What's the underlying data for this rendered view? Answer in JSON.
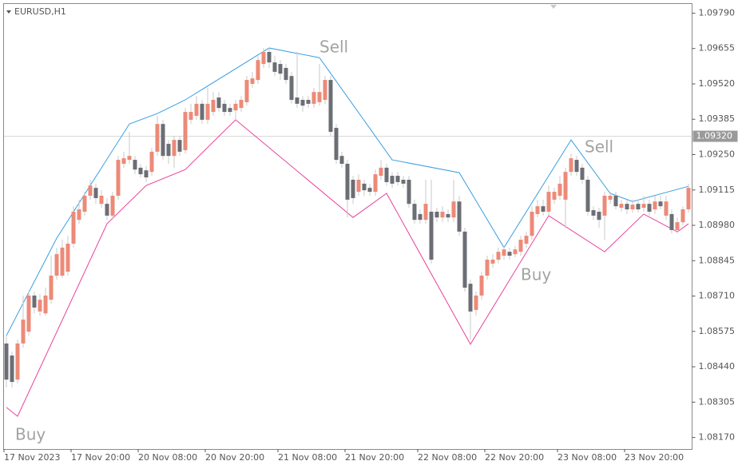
{
  "chart_data": {
    "type": "candlestick",
    "symbol": "EURUSD,H1",
    "up_color": "#ec8a78",
    "down_color": "#6b6e74",
    "upper_color": "#3a9ee0",
    "lower_color": "#e8429a",
    "ylim": [
      1.08126,
      1.09825
    ],
    "yticks": [
      {
        "value": 1.0979,
        "label": "1.09790"
      },
      1.09655,
      {
        "value": 1.0952,
        "label": "1.09520"
      },
      1.09385,
      {
        "value": 1.0925,
        "label": "1.09250"
      },
      1.09115,
      {
        "value": 1.0898,
        "label": "1.08980"
      },
      1.08845,
      {
        "value": 1.0871,
        "label": "1.08710"
      },
      1.08575,
      {
        "value": 1.0844,
        "label": "1.08440"
      },
      1.08305,
      {
        "value": 1.0817,
        "label": "1.08170"
      }
    ],
    "current_price": {
      "value": 1.0932,
      "label": "1.09320"
    },
    "categories": [
      "17 Nov 2023",
      null,
      null,
      null,
      null,
      null,
      null,
      null,
      null,
      null,
      null,
      null,
      "17 Nov 20:00",
      null,
      null,
      null,
      null,
      null,
      null,
      null,
      null,
      null,
      null,
      null,
      "20 Nov 08:00",
      null,
      null,
      null,
      null,
      null,
      null,
      null,
      null,
      null,
      null,
      null,
      "20 Nov 20:00",
      null,
      null,
      null,
      null,
      null,
      null,
      null,
      null,
      null,
      null,
      null,
      null,
      "21 Nov 08:00",
      null,
      null,
      null,
      null,
      null,
      null,
      null,
      null,
      null,
      null,
      null,
      "21 Nov 20:00",
      null,
      null,
      null,
      null,
      null,
      null,
      null,
      null,
      null,
      null,
      null,
      null,
      "22 Nov 08:00",
      null,
      null,
      null,
      null,
      null,
      null,
      null,
      null,
      null,
      null,
      null,
      "22 Nov 20:00",
      null,
      null,
      null,
      null,
      null,
      null,
      null,
      null,
      null,
      null,
      null,
      null,
      "23 Nov 08:00",
      null,
      null,
      null,
      null,
      null,
      null,
      null,
      null,
      null,
      null,
      null,
      "23 Nov 20:00",
      null,
      null,
      null,
      null,
      null,
      null,
      null,
      null,
      null,
      null,
      null
    ],
    "ohlc": [
      [
        1.08529,
        1.08559,
        1.08361,
        1.08391
      ],
      [
        1.08483,
        1.08498,
        1.08361,
        1.08382
      ],
      [
        1.08391,
        1.08544,
        1.08376,
        1.08529
      ],
      [
        1.08529,
        1.08712,
        1.08513,
        1.0862
      ],
      [
        1.08574,
        1.08727,
        1.08559,
        1.08712
      ],
      [
        1.08712,
        1.08727,
        1.08644,
        1.08666
      ],
      [
        1.08651,
        1.08718,
        1.08635,
        1.08696
      ],
      [
        1.08644,
        1.08742,
        1.08635,
        1.08712
      ],
      [
        1.08696,
        1.08864,
        1.08681,
        1.08788
      ],
      [
        1.08788,
        1.08895,
        1.08773,
        1.0887
      ],
      [
        1.08788,
        1.08925,
        1.08779,
        1.08895
      ],
      [
        1.08803,
        1.0894,
        1.08788,
        1.0891
      ],
      [
        1.0891,
        1.09053,
        1.08895,
        1.09032
      ],
      [
        1.09001,
        1.09078,
        1.08986,
        1.09041
      ],
      [
        1.09032,
        1.09108,
        1.09017,
        1.09093
      ],
      [
        1.09093,
        1.09154,
        1.09078,
        1.09132
      ],
      [
        1.09123,
        1.09139,
        1.09062,
        1.09084
      ],
      [
        1.09062,
        1.09114,
        1.09047,
        1.09093
      ],
      [
        1.09062,
        1.09084,
        1.09001,
        1.09017
      ],
      [
        1.09017,
        1.09108,
        1.09001,
        1.09093
      ],
      [
        1.09093,
        1.09245,
        1.09078,
        1.0923
      ],
      [
        1.09215,
        1.09261,
        1.092,
        1.09236
      ],
      [
        1.0923,
        1.09337,
        1.09215,
        1.09245
      ],
      [
        1.0923,
        1.09245,
        1.09175,
        1.09193
      ],
      [
        1.092,
        1.09215,
        1.09163,
        1.09175
      ],
      [
        1.0919,
        1.09206,
        1.09145,
        1.09163
      ],
      [
        1.09184,
        1.09276,
        1.09169,
        1.09261
      ],
      [
        1.09261,
        1.09398,
        1.09245,
        1.09367
      ],
      [
        1.09367,
        1.09383,
        1.0923,
        1.09245
      ],
      [
        1.09291,
        1.09306,
        1.09215,
        1.09245
      ],
      [
        1.09245,
        1.09322,
        1.092,
        1.09306
      ],
      [
        1.09306,
        1.09322,
        1.09245,
        1.09261
      ],
      [
        1.09267,
        1.09428,
        1.09254,
        1.09413
      ],
      [
        1.09383,
        1.09444,
        1.09367,
        1.09413
      ],
      [
        1.09398,
        1.09474,
        1.09383,
        1.09444
      ],
      [
        1.09444,
        1.09459,
        1.09367,
        1.09383
      ],
      [
        1.09383,
        1.09505,
        1.09367,
        1.09444
      ],
      [
        1.09413,
        1.09489,
        1.09398,
        1.09459
      ],
      [
        1.09468,
        1.09489,
        1.09413,
        1.09428
      ],
      [
        1.09444,
        1.09459,
        1.09398,
        1.09413
      ],
      [
        1.09428,
        1.09444,
        1.09398,
        1.09413
      ],
      [
        1.09419,
        1.09459,
        1.09383,
        1.09444
      ],
      [
        1.09428,
        1.09474,
        1.09413,
        1.09459
      ],
      [
        1.0945,
        1.0955,
        1.09437,
        1.09535
      ],
      [
        1.0952,
        1.09566,
        1.09505,
        1.09541
      ],
      [
        1.09535,
        1.09627,
        1.0952,
        1.09611
      ],
      [
        1.09596,
        1.09657,
        1.09581,
        1.09642
      ],
      [
        1.09642,
        1.09657,
        1.09581,
        1.09602
      ],
      [
        1.09602,
        1.09627,
        1.0955,
        1.09566
      ],
      [
        1.09596,
        1.09611,
        1.09535,
        1.09559
      ],
      [
        1.09581,
        1.09596,
        1.0952,
        1.09535
      ],
      [
        1.0955,
        1.09566,
        1.09444,
        1.09459
      ],
      [
        1.09468,
        1.09642,
        1.09428,
        1.09444
      ],
      [
        1.09459,
        1.09474,
        1.09413,
        1.09437
      ],
      [
        1.09459,
        1.09474,
        1.09428,
        1.09444
      ],
      [
        1.09444,
        1.09505,
        1.09428,
        1.09489
      ],
      [
        1.0945,
        1.09596,
        1.09437,
        1.09489
      ],
      [
        1.09459,
        1.0955,
        1.09444,
        1.09535
      ],
      [
        1.09535,
        1.0955,
        1.09322,
        1.09337
      ],
      [
        1.09352,
        1.09367,
        1.09215,
        1.0923
      ],
      [
        1.09245,
        1.09261,
        1.092,
        1.09215
      ],
      [
        1.09215,
        1.0923,
        1.0901,
        1.09078
      ],
      [
        1.09154,
        1.09169,
        1.09062,
        1.09084
      ],
      [
        1.09108,
        1.09175,
        1.09093,
        1.09154
      ],
      [
        1.09139,
        1.09154,
        1.09093,
        1.09114
      ],
      [
        1.09123,
        1.09139,
        1.09093,
        1.09108
      ],
      [
        1.09108,
        1.09193,
        1.09093,
        1.09175
      ],
      [
        1.09169,
        1.0923,
        1.09154,
        1.092
      ],
      [
        1.092,
        1.09215,
        1.09132,
        1.09145
      ],
      [
        1.09169,
        1.09184,
        1.09123,
        1.09139
      ],
      [
        1.09169,
        1.09184,
        1.09132,
        1.09145
      ],
      [
        1.09154,
        1.09169,
        1.09123,
        1.09139
      ],
      [
        1.09154,
        1.09169,
        1.09047,
        1.09062
      ],
      [
        1.09062,
        1.09078,
        1.08986,
        1.09001
      ],
      [
        1.09023,
        1.09041,
        1.08986,
        1.09001
      ],
      [
        1.09001,
        1.09154,
        1.08986,
        1.09062
      ],
      [
        1.09032,
        1.09154,
        1.08834,
        1.08849
      ],
      [
        1.09032,
        1.09047,
        1.08992,
        1.0901
      ],
      [
        1.0901,
        1.09053,
        1.08992,
        1.09032
      ],
      [
        1.09023,
        1.09041,
        1.08992,
        1.0901
      ],
      [
        1.0901,
        1.09154,
        1.08992,
        1.09071
      ],
      [
        1.09071,
        1.09093,
        1.0894,
        1.08956
      ],
      [
        1.08956,
        1.08971,
        1.08727,
        1.08742
      ],
      [
        1.08757,
        1.08773,
        1.08544,
        1.08651
      ],
      [
        1.08657,
        1.08727,
        1.08635,
        1.08712
      ],
      [
        1.08712,
        1.08803,
        1.08696,
        1.08788
      ],
      [
        1.08788,
        1.08864,
        1.08773,
        1.08849
      ],
      [
        1.08834,
        1.0887,
        1.08818,
        1.08849
      ],
      [
        1.08849,
        1.08895,
        1.08834,
        1.08879
      ],
      [
        1.08864,
        1.08901,
        1.08849,
        1.08888
      ],
      [
        1.08879,
        1.08895,
        1.08849,
        1.08864
      ],
      [
        1.0887,
        1.08901,
        1.08858,
        1.08888
      ],
      [
        1.08879,
        1.0894,
        1.08864,
        1.08925
      ],
      [
        1.0891,
        1.08956,
        1.08895,
        1.0894
      ],
      [
        1.0894,
        1.09053,
        1.08925,
        1.09032
      ],
      [
        1.09023,
        1.09078,
        1.0901,
        1.09053
      ],
      [
        1.09053,
        1.09078,
        1.09017,
        1.09032
      ],
      [
        1.09032,
        1.09132,
        1.09017,
        1.09108
      ],
      [
        1.09078,
        1.09123,
        1.09062,
        1.09108
      ],
      [
        1.09093,
        1.09169,
        1.09078,
        1.09139
      ],
      [
        1.09078,
        1.092,
        1.08971,
        1.09184
      ],
      [
        1.09184,
        1.09254,
        1.09169,
        1.09236
      ],
      [
        1.0923,
        1.09245,
        1.09169,
        1.09184
      ],
      [
        1.092,
        1.09215,
        1.09139,
        1.09154
      ],
      [
        1.09154,
        1.09169,
        1.09017,
        1.09032
      ],
      [
        1.09038,
        1.09053,
        1.09001,
        1.09017
      ],
      [
        1.09032,
        1.09047,
        1.08971,
        1.09001
      ],
      [
        1.09017,
        1.09108,
        1.08925,
        1.09093
      ],
      [
        1.09078,
        1.09108,
        1.09062,
        1.09093
      ],
      [
        1.09093,
        1.09108,
        1.09041,
        1.09053
      ],
      [
        1.09047,
        1.09078,
        1.09032,
        1.09062
      ],
      [
        1.09062,
        1.09078,
        1.09023,
        1.09041
      ],
      [
        1.09041,
        1.09078,
        1.09029,
        1.09059
      ],
      [
        1.09062,
        1.09078,
        1.09029,
        1.09041
      ],
      [
        1.09047,
        1.09093,
        1.09032,
        1.09062
      ],
      [
        1.09062,
        1.09078,
        1.09017,
        1.09032
      ],
      [
        1.09041,
        1.09093,
        1.09023,
        1.09071
      ],
      [
        1.09071,
        1.09093,
        1.09041,
        1.09053
      ],
      [
        1.09017,
        1.09093,
        1.09001,
        1.09071
      ],
      [
        1.09023,
        1.09041,
        1.08949,
        1.08962
      ],
      [
        1.08962,
        1.0901,
        1.08949,
        1.08992
      ],
      [
        1.08992,
        1.09053,
        1.0898,
        1.09041
      ],
      [
        1.09041,
        1.09139,
        1.09029,
        1.09123
      ]
    ],
    "upper_line": {
      "x": [
        0,
        9,
        22,
        27,
        32,
        47,
        56,
        69,
        81,
        89,
        101,
        108,
        112,
        122
      ],
      "values": [
        1.08559,
        1.08931,
        1.09367,
        1.09407,
        1.09459,
        1.09657,
        1.0962,
        1.0923,
        1.09181,
        1.08895,
        1.09306,
        1.09102,
        1.09071,
        1.09129
      ]
    },
    "lower_line": {
      "x": [
        0,
        2,
        18,
        25,
        32,
        41,
        62,
        68,
        83,
        97,
        107,
        114,
        120,
        122
      ],
      "values": [
        1.08285,
        1.08251,
        1.08986,
        1.09132,
        1.09193,
        1.09383,
        1.0901,
        1.09102,
        1.08526,
        1.09017,
        1.08879,
        1.09023,
        1.08955,
        1.08986
      ]
    },
    "annotations": [
      "Sell",
      "Sell",
      "Buy",
      "Buy"
    ]
  }
}
